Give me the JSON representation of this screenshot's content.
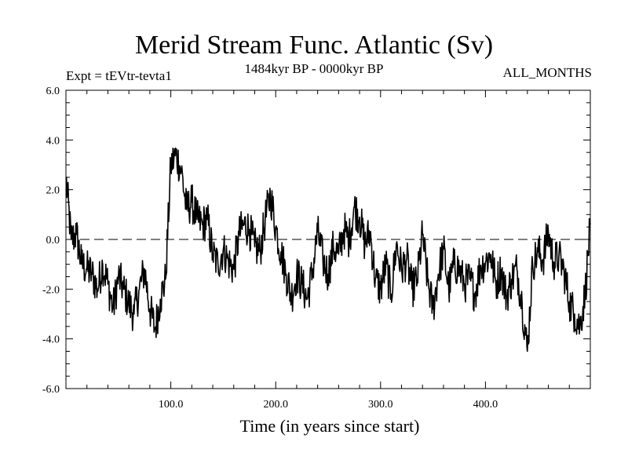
{
  "chart_data": {
    "type": "line",
    "title": "Merid Stream Func. Atlantic (Sv)",
    "subtitle": "1484kyr BP - 0000kyr BP",
    "experiment_label": "Expt = tEVtr-tevta1",
    "months_label": "ALL_MONTHS",
    "xlabel": "Time (in years since start)",
    "ylabel": "",
    "xlim": [
      0,
      500
    ],
    "ylim": [
      -6.0,
      6.0
    ],
    "x_ticks": [
      100,
      200,
      300,
      400
    ],
    "x_tick_labels": [
      "100.0",
      "200.0",
      "300.0",
      "400.0"
    ],
    "y_ticks": [
      -6,
      -4,
      -2,
      0,
      2,
      4,
      6
    ],
    "y_tick_labels": [
      "-6.0",
      "-4.0",
      "-2.0",
      "0.0",
      "2.0",
      "4.0",
      "6.0"
    ],
    "zero_line": "dashed",
    "series": [
      {
        "name": "Merid Stream Func. Atlantic",
        "x": [
          0,
          5,
          10,
          15,
          20,
          25,
          30,
          35,
          40,
          45,
          50,
          55,
          60,
          65,
          70,
          75,
          80,
          85,
          90,
          95,
          100,
          105,
          110,
          115,
          120,
          125,
          130,
          135,
          140,
          145,
          150,
          155,
          160,
          165,
          170,
          175,
          180,
          185,
          190,
          195,
          200,
          205,
          210,
          215,
          220,
          225,
          230,
          235,
          240,
          245,
          250,
          255,
          260,
          265,
          270,
          275,
          280,
          285,
          290,
          295,
          300,
          305,
          310,
          315,
          320,
          325,
          330,
          335,
          340,
          345,
          350,
          355,
          360,
          365,
          370,
          375,
          380,
          385,
          390,
          395,
          400,
          405,
          410,
          415,
          420,
          425,
          430,
          435,
          440,
          445,
          450,
          455,
          460,
          465,
          470,
          475,
          480,
          485,
          490,
          495,
          500
        ],
        "y": [
          2.5,
          0.0,
          0.2,
          -1.0,
          -1.2,
          -1.4,
          -2.0,
          -1.0,
          -1.8,
          -2.8,
          -1.5,
          -2.0,
          -2.6,
          -3.0,
          -2.0,
          -1.2,
          -2.8,
          -3.6,
          -2.4,
          -1.6,
          3.0,
          3.4,
          2.8,
          1.2,
          1.5,
          0.8,
          0.6,
          0.8,
          -0.6,
          -1.0,
          -0.4,
          -0.9,
          -1.2,
          0.2,
          0.6,
          0.4,
          -0.3,
          -0.5,
          0.8,
          1.8,
          0.5,
          -0.5,
          -1.4,
          -2.3,
          -1.4,
          -1.8,
          -2.4,
          -1.3,
          0.3,
          -0.8,
          -1.4,
          -0.3,
          -0.6,
          0.4,
          0.0,
          1.3,
          0.9,
          -0.2,
          0.3,
          -1.6,
          -2.0,
          -1.0,
          -2.2,
          -0.2,
          -1.2,
          -0.8,
          -2.0,
          -1.6,
          0.2,
          -1.7,
          -2.8,
          -1.4,
          -0.4,
          -2.0,
          -1.0,
          -1.2,
          -1.8,
          -1.6,
          -2.2,
          -1.1,
          -0.9,
          -0.6,
          -1.8,
          -1.2,
          -2.3,
          -1.6,
          -1.2,
          -2.6,
          -4.5,
          -1.0,
          -0.5,
          -0.8,
          0.3,
          -0.9,
          -0.7,
          -1.3,
          -2.5,
          -3.0,
          -3.5,
          -2.2,
          0.6
        ]
      }
    ]
  }
}
